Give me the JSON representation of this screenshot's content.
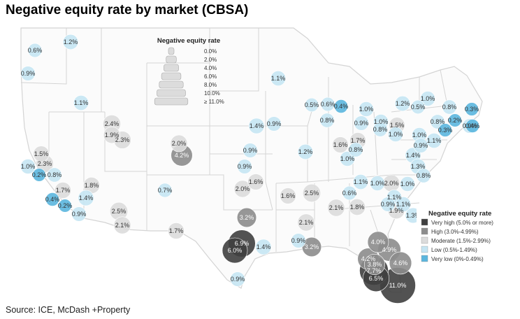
{
  "title": "Negative equity rate by market (CBSA)",
  "source": "Source: ICE, McDash +Property",
  "colors": {
    "very_high": "#3f3f3f",
    "high": "#8c8c8c",
    "moderate": "#dcdcdc",
    "low": "#c5e5f3",
    "very_low": "#5bb6de",
    "state_line": "#d4d4d4",
    "map_bg": "#ffffff"
  },
  "size_legend": {
    "title": "Negative equity rate",
    "labels": [
      "0.0%",
      "2.0%",
      "4.0%",
      "6.0%",
      "8.0%",
      "10.0%",
      "≥ 11.0%"
    ]
  },
  "color_legend": {
    "title": "Negative equity rate",
    "items": [
      {
        "label": "Very high (5.0% or more)",
        "category": "very_high"
      },
      {
        "label": "High (3.0%-4.99%)",
        "category": "high"
      },
      {
        "label": "Moderate (1.5%-2.99%)",
        "category": "moderate"
      },
      {
        "label": "Low (0.5%-1.49%)",
        "category": "low"
      },
      {
        "label": "Very low (0%-0.49%)",
        "category": "very_low"
      }
    ]
  },
  "markets": [
    {
      "value": 0.6,
      "label": "0.6%"
    },
    {
      "value": 1.2,
      "label": "1.2%"
    },
    {
      "value": 0.9,
      "label": "0.9%"
    },
    {
      "value": 1.1,
      "label": "1.1%"
    },
    {
      "value": 2.4,
      "label": "2.4%"
    },
    {
      "value": 1.9,
      "label": "1.9%"
    },
    {
      "value": 2.3,
      "label": "2.3%"
    },
    {
      "value": 2.0,
      "label": "2.0%"
    },
    {
      "value": 4.2,
      "label": "4.2%"
    },
    {
      "value": 1.5,
      "label": "1.5%"
    },
    {
      "value": 2.3,
      "label": "2.3%"
    },
    {
      "value": 1.0,
      "label": "1.0%"
    },
    {
      "value": 0.2,
      "label": "0.2%"
    },
    {
      "value": 0.8,
      "label": "0.8%"
    },
    {
      "value": 1.7,
      "label": "1.7%"
    },
    {
      "value": 1.8,
      "label": "1.8%"
    },
    {
      "value": 1.4,
      "label": "1.4%"
    },
    {
      "value": 0.4,
      "label": "0.4%"
    },
    {
      "value": 0.2,
      "label": "0.2%"
    },
    {
      "value": 0.9,
      "label": "0.9%"
    },
    {
      "value": 2.5,
      "label": "2.5%"
    },
    {
      "value": 2.1,
      "label": "2.1%"
    },
    {
      "value": 1.7,
      "label": "1.7%"
    },
    {
      "value": 0.7,
      "label": "0.7%"
    },
    {
      "value": 1.1,
      "label": "1.1%"
    },
    {
      "value": 1.4,
      "label": "1.4%"
    },
    {
      "value": 0.9,
      "label": "0.9%"
    },
    {
      "value": 0.9,
      "label": "0.9%"
    },
    {
      "value": 0.9,
      "label": "0.9%"
    },
    {
      "value": 1.6,
      "label": "1.6%"
    },
    {
      "value": 2.0,
      "label": "2.0%"
    },
    {
      "value": 3.2,
      "label": "3.2%"
    },
    {
      "value": 6.9,
      "label": "6.9%"
    },
    {
      "value": 6.0,
      "label": "6.0%"
    },
    {
      "value": 1.4,
      "label": "1.4%"
    },
    {
      "value": 0.9,
      "label": "0.9%"
    },
    {
      "value": 0.5,
      "label": "0.5%"
    },
    {
      "value": 0.6,
      "label": "0.6%"
    },
    {
      "value": 0.4,
      "label": "0.4%"
    },
    {
      "value": 0.8,
      "label": "0.8%"
    },
    {
      "value": 1.2,
      "label": "1.2%"
    },
    {
      "value": 1.6,
      "label": "1.6%"
    },
    {
      "value": 1.7,
      "label": "1.7%"
    },
    {
      "value": 0.8,
      "label": "0.8%"
    },
    {
      "value": 1.0,
      "label": "1.0%"
    },
    {
      "value": 1.0,
      "label": "1.0%"
    },
    {
      "value": 0.9,
      "label": "0.9%"
    },
    {
      "value": 1.0,
      "label": "1.0%"
    },
    {
      "value": 1.5,
      "label": "1.5%"
    },
    {
      "value": 0.8,
      "label": "0.8%"
    },
    {
      "value": 1.0,
      "label": "1.0%"
    },
    {
      "value": 1.2,
      "label": "1.2%"
    },
    {
      "value": 0.5,
      "label": "0.5%"
    },
    {
      "value": 1.0,
      "label": "1.0%"
    },
    {
      "value": 0.8,
      "label": "0.8%"
    },
    {
      "value": 0.8,
      "label": "0.8%"
    },
    {
      "value": 0.3,
      "label": "0.3%"
    },
    {
      "value": 0.9,
      "label": "0.9%"
    },
    {
      "value": 0.2,
      "label": "0.2%"
    },
    {
      "value": 0.3,
      "label": "0.3%"
    },
    {
      "value": 0.4,
      "label": "0.4%"
    },
    {
      "value": 1.0,
      "label": "1.0%"
    },
    {
      "value": 1.1,
      "label": "1.1%"
    },
    {
      "value": 0.9,
      "label": "0.9%"
    },
    {
      "value": 1.4,
      "label": "1.4%"
    },
    {
      "value": 1.3,
      "label": "1.3%"
    },
    {
      "value": 0.8,
      "label": "0.8%"
    },
    {
      "value": 2.0,
      "label": "2.0%"
    },
    {
      "value": 1.0,
      "label": "1.0%"
    },
    {
      "value": 1.1,
      "label": "1.1%"
    },
    {
      "value": 1.0,
      "label": "1.0%"
    },
    {
      "value": 0.6,
      "label": "0.6%"
    },
    {
      "value": 1.1,
      "label": "1.1%"
    },
    {
      "value": 0.9,
      "label": "0.9%"
    },
    {
      "value": 1.1,
      "label": "1.1%"
    },
    {
      "value": 1.9,
      "label": "1.9%"
    },
    {
      "value": 1.3,
      "label": "1.3%"
    },
    {
      "value": 1.6,
      "label": "1.6%"
    },
    {
      "value": 2.5,
      "label": "2.5%"
    },
    {
      "value": 2.1,
      "label": "2.1%"
    },
    {
      "value": 1.8,
      "label": "1.8%"
    },
    {
      "value": 2.1,
      "label": "2.1%"
    },
    {
      "value": 0.9,
      "label": "0.9%"
    },
    {
      "value": 3.2,
      "label": "3.2%"
    },
    {
      "value": 4.0,
      "label": "4.0%"
    },
    {
      "value": 4.9,
      "label": "4.9%"
    },
    {
      "value": 4.2,
      "label": "4.2%"
    },
    {
      "value": 4.6,
      "label": "4.6%"
    },
    {
      "value": 3.8,
      "label": "3.8%"
    },
    {
      "value": 7.7,
      "label": "7.7%"
    },
    {
      "value": 6.5,
      "label": "6.5%"
    },
    {
      "value": 11.0,
      "label": "11.0%"
    },
    {
      "value": 1.6,
      "label": "1.6%"
    }
  ]
}
